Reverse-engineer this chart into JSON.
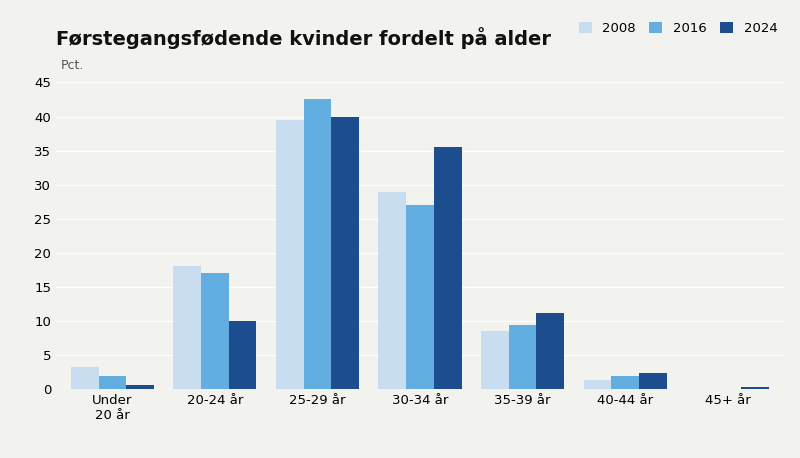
{
  "title": "Førstegangsfødende kvinder fordelt på alder",
  "ylabel": "Pct.",
  "categories": [
    "Under\n20 år",
    "20-24 år",
    "25-29 år",
    "30-34 år",
    "35-39 år",
    "40-44 år",
    "45+ år"
  ],
  "series": {
    "2008": [
      3.2,
      18.1,
      39.5,
      29.0,
      8.5,
      1.3,
      0.0
    ],
    "2016": [
      2.0,
      17.0,
      42.5,
      27.0,
      9.5,
      2.0,
      0.0
    ],
    "2024": [
      0.7,
      10.0,
      40.0,
      35.5,
      11.2,
      2.4,
      0.3
    ]
  },
  "colors": {
    "2008": "#c8ddf0",
    "2016": "#62aee0",
    "2024": "#1c4e8f"
  },
  "legend_labels": [
    "2008",
    "2016",
    "2024"
  ],
  "ylim": [
    0,
    45
  ],
  "yticks": [
    0,
    5,
    10,
    15,
    20,
    25,
    30,
    35,
    40,
    45
  ],
  "background_color": "#f2f2ee",
  "grid_color": "#ffffff",
  "title_fontsize": 14,
  "axis_label_fontsize": 9,
  "tick_fontsize": 9.5
}
